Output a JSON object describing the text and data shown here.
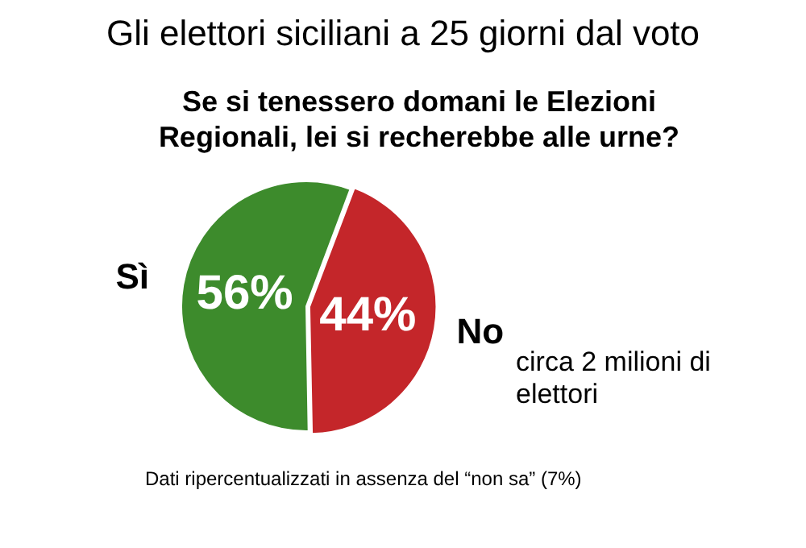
{
  "chart_data": {
    "type": "pie",
    "title": "Gli elettori siciliani a 25 giorni dal voto",
    "subtitle": "Se si tenessero domani le Elezioni Regionali, lei si recherebbe alle urne?",
    "categories": [
      "Sì",
      "No"
    ],
    "values": [
      56,
      44
    ],
    "colors": [
      "#3d8b2c",
      "#c4262a"
    ],
    "value_labels": [
      "56%",
      "44%"
    ],
    "legend": false,
    "annotations": [
      "circa 2 milioni di elettori",
      "Dati ripercentualizzati in assenza del “non sa” (7%)"
    ]
  }
}
